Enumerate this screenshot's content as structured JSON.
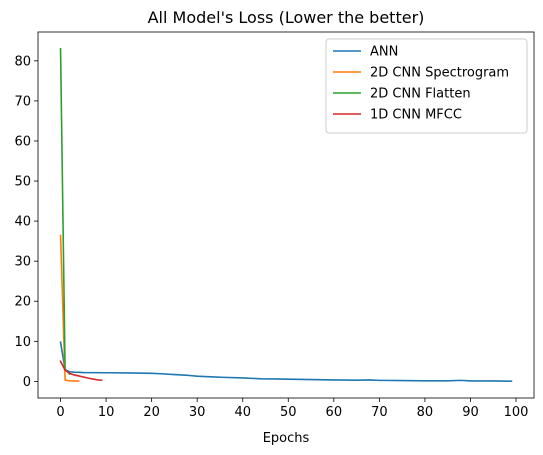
{
  "chart_data": {
    "type": "line",
    "title": "All Model's Loss (Lower the better)",
    "xlabel": "Epochs",
    "ylabel": "",
    "xlim": [
      -4.95,
      103.95
    ],
    "ylim": [
      -4.15,
      87.2
    ],
    "xticks": [
      0,
      10,
      20,
      30,
      40,
      50,
      60,
      70,
      80,
      90,
      100
    ],
    "yticks": [
      0,
      10,
      20,
      30,
      40,
      50,
      60,
      70,
      80
    ],
    "grid": false,
    "legend_position": "top-right",
    "series": [
      {
        "name": "ANN",
        "color": "#1f77b4",
        "x": [
          0,
          1,
          2,
          3,
          4,
          5,
          10,
          15,
          20,
          22,
          25,
          28,
          30,
          33,
          36,
          40,
          44,
          47,
          50,
          55,
          60,
          65,
          68,
          70,
          75,
          80,
          85,
          88,
          90,
          95,
          99
        ],
        "y": [
          9.8,
          2.9,
          2.4,
          2.3,
          2.25,
          2.2,
          2.15,
          2.1,
          2.0,
          1.9,
          1.7,
          1.5,
          1.3,
          1.15,
          1.0,
          0.85,
          0.65,
          0.6,
          0.55,
          0.45,
          0.35,
          0.3,
          0.35,
          0.25,
          0.2,
          0.15,
          0.15,
          0.25,
          0.12,
          0.1,
          0.05
        ]
      },
      {
        "name": "2D CNN Spectrogram",
        "color": "#ff7f0e",
        "x": [
          0,
          1,
          2,
          3,
          4
        ],
        "y": [
          36.4,
          0.3,
          0.15,
          0.1,
          0.05
        ]
      },
      {
        "name": "2D CNN Flatten",
        "color": "#2ca02c",
        "x": [
          0,
          1,
          2
        ],
        "y": [
          83.0,
          3.0,
          1.8
        ]
      },
      {
        "name": "1D CNN MFCC",
        "color": "#d62728",
        "x": [
          0,
          1,
          2,
          3,
          4,
          5,
          6,
          7,
          8,
          9
        ],
        "y": [
          5.0,
          2.8,
          2.0,
          1.6,
          1.35,
          1.1,
          0.85,
          0.6,
          0.4,
          0.3
        ]
      }
    ]
  }
}
